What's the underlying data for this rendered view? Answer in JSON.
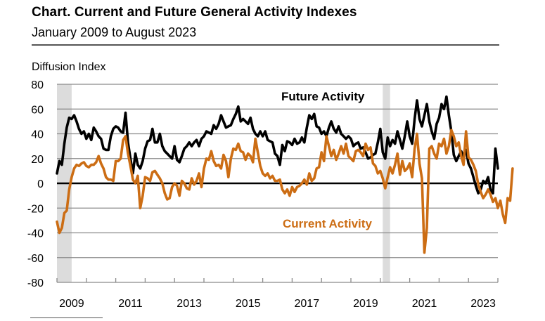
{
  "chart_data": {
    "type": "line",
    "title": "Chart. Current and Future General Activity Indexes",
    "subtitle": "January 2009 to August 2023",
    "ylabel": "Diffusion Index",
    "xlabel": "",
    "ylim": [
      -80,
      80
    ],
    "yticks": [
      80,
      60,
      40,
      20,
      0,
      -20,
      -40,
      -60,
      -80
    ],
    "xticks": [
      "2009",
      "2011",
      "2013",
      "2015",
      "2017",
      "2019",
      "2021",
      "2023"
    ],
    "x_start": "2009-01",
    "x_end": "2023-08",
    "x_axis_range_months": [
      0,
      180
    ],
    "grid": true,
    "recessions": [
      {
        "start": "2009-01",
        "end": "2009-06"
      },
      {
        "start": "2020-02",
        "end": "2020-04"
      }
    ],
    "series": [
      {
        "name": "Future Activity",
        "color": "#000000",
        "annotation": "Future Activity",
        "values": [
          8,
          18,
          15,
          32,
          45,
          53,
          52,
          55,
          50,
          44,
          40,
          42,
          36,
          40,
          35,
          45,
          42,
          38,
          36,
          28,
          27,
          27,
          38,
          44,
          46,
          45,
          42,
          41,
          57,
          33,
          20,
          8,
          24,
          15,
          12,
          18,
          28,
          34,
          35,
          44,
          33,
          33,
          40,
          30,
          26,
          24,
          22,
          20,
          30,
          19,
          17,
          22,
          28,
          30,
          33,
          30,
          33,
          35,
          30,
          36,
          38,
          42,
          41,
          40,
          47,
          44,
          48,
          55,
          50,
          45,
          46,
          47,
          52,
          56,
          62,
          50,
          52,
          50,
          48,
          53,
          44,
          40,
          38,
          42,
          38,
          42,
          35,
          34,
          33,
          24,
          22,
          15,
          31,
          26,
          34,
          33,
          31,
          36,
          32,
          33,
          37,
          33,
          45,
          55,
          52,
          56,
          46,
          45,
          40,
          42,
          38,
          45,
          50,
          44,
          41,
          46,
          40,
          38,
          36,
          38,
          36,
          30,
          32,
          33,
          28,
          29,
          25,
          20,
          21,
          23,
          24,
          33,
          44,
          25,
          20,
          37,
          30,
          35,
          32,
          42,
          35,
          28,
          38,
          50,
          38,
          32,
          52,
          67,
          52,
          46,
          55,
          64,
          50,
          42,
          36,
          48,
          53,
          64,
          60,
          70,
          55,
          42,
          23,
          18,
          22,
          26,
          22,
          27,
          16,
          12,
          5,
          -2,
          -8,
          -5,
          2,
          0,
          5,
          -5,
          -8,
          28,
          12
        ]
      },
      {
        "name": "Current Activity",
        "color": "#cc6d14",
        "annotation": "Current Activity",
        "values": [
          -31,
          -40,
          -36,
          -24,
          -22,
          -5,
          5,
          12,
          15,
          14,
          16,
          17,
          14,
          13,
          15,
          15,
          17,
          22,
          16,
          12,
          5,
          3,
          3,
          2,
          18,
          18,
          20,
          35,
          38,
          24,
          14,
          3,
          0,
          6,
          -20,
          -10,
          5,
          4,
          2,
          9,
          10,
          7,
          4,
          0,
          -8,
          -13,
          -12,
          -3,
          0,
          -2,
          -10,
          2,
          0,
          -4,
          -5,
          4,
          -1,
          2,
          8,
          -3,
          12,
          20,
          19,
          26,
          18,
          14,
          15,
          12,
          23,
          18,
          5,
          20,
          28,
          27,
          32,
          26,
          25,
          19,
          24,
          22,
          17,
          36,
          25,
          14,
          8,
          6,
          8,
          4,
          6,
          2,
          2,
          3,
          -5,
          -8,
          -5,
          -10,
          -3,
          -7,
          -3,
          -2,
          0,
          3,
          -1,
          8,
          2,
          4,
          12,
          13,
          25,
          18,
          38,
          30,
          22,
          27,
          19,
          24,
          30,
          24,
          32,
          22,
          20,
          18,
          26,
          27,
          25,
          22,
          32,
          27,
          29,
          16,
          14,
          8,
          10,
          4,
          -4,
          5,
          13,
          8,
          15,
          24,
          7,
          18,
          10,
          12,
          16,
          5,
          28,
          40,
          16,
          4,
          -56,
          -36,
          28,
          30,
          24,
          20,
          32,
          30,
          36,
          24,
          30,
          43,
          38,
          30,
          33,
          22,
          15,
          42,
          21,
          19,
          15,
          10,
          -1,
          -7,
          -12,
          -9,
          -5,
          -9,
          -15,
          -12,
          -20,
          -14,
          -25,
          -32,
          -12,
          -14,
          12
        ]
      }
    ]
  }
}
